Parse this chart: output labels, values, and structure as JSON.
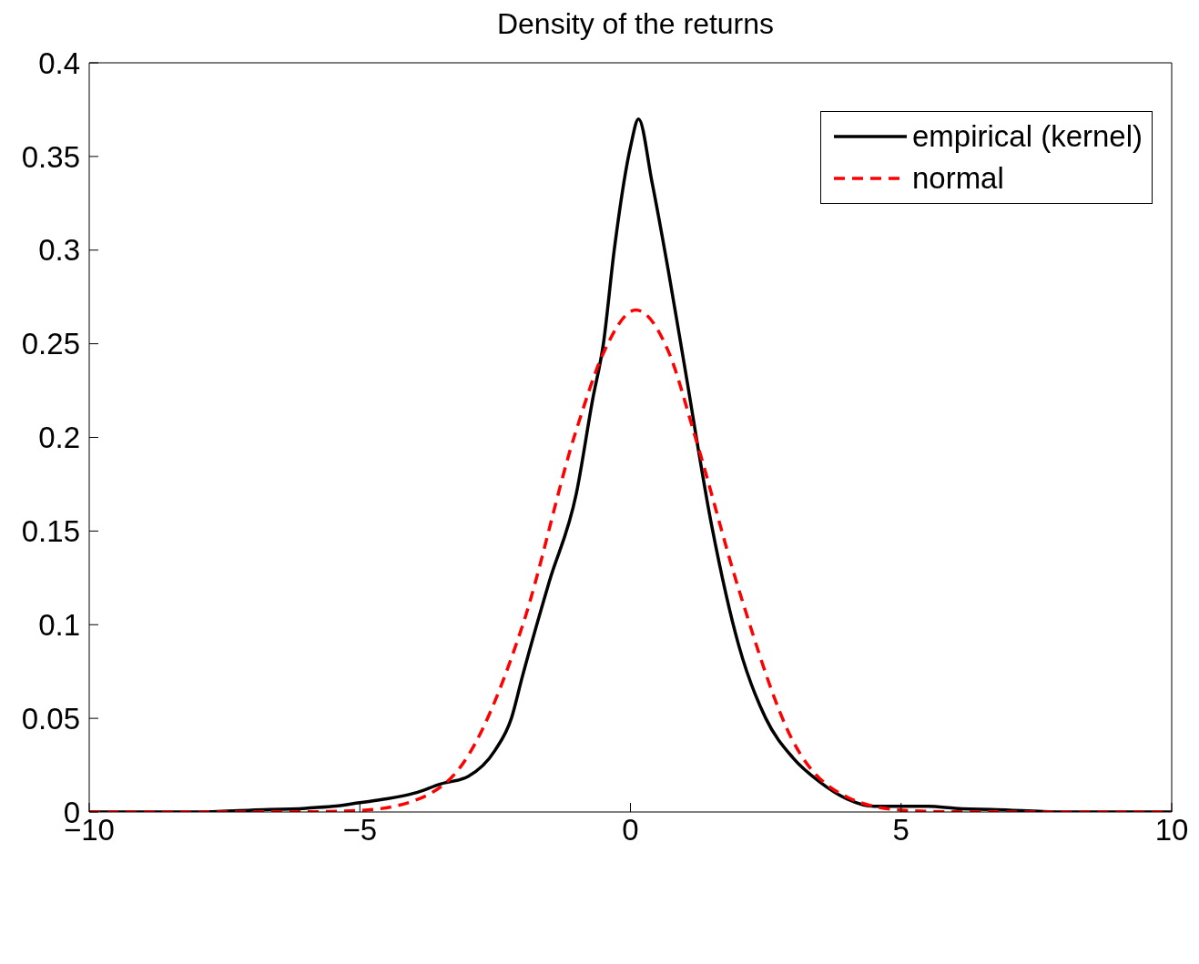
{
  "chart_data": {
    "type": "line",
    "title": "Density of the returns",
    "xlim": [
      -10,
      10
    ],
    "xticks": [
      {
        "value": -10,
        "label": "−10"
      },
      {
        "value": -5,
        "label": "−5"
      },
      0,
      5,
      10
    ],
    "ylim": [
      0,
      0.4
    ],
    "yticks": [
      0,
      0.05,
      0.1,
      0.15,
      0.2,
      0.25,
      0.3,
      0.35,
      0.4
    ],
    "grid": false,
    "legend": "top right",
    "marker": "none",
    "series": [
      {
        "name": "empirical (kernel)",
        "color": "#000000",
        "line_style": "solid",
        "x": [
          -10,
          -8,
          -7,
          -6,
          -5.5,
          -5,
          -4.5,
          -4,
          -3.5,
          -3,
          -2.5,
          -2.2,
          -2,
          -1.5,
          -1,
          -0.7,
          -0.5,
          -0.3,
          0,
          0.15,
          0.4,
          0.7,
          1,
          1.5,
          2,
          2.5,
          3,
          3.5,
          4,
          4.5,
          5,
          5.5,
          6,
          7,
          8,
          10
        ],
        "values": [
          0,
          0,
          0.001,
          0.002,
          0.003,
          0.005,
          0.007,
          0.01,
          0.015,
          0.019,
          0.033,
          0.05,
          0.072,
          0.123,
          0.17,
          0.22,
          0.25,
          0.3,
          0.355,
          0.37,
          0.336,
          0.289,
          0.238,
          0.153,
          0.089,
          0.05,
          0.029,
          0.016,
          0.007,
          0.003,
          0.003,
          0.003,
          0.002,
          0.001,
          0,
          0
        ]
      },
      {
        "name": "normal",
        "color": "#ff0000",
        "line_style": "dashed",
        "x": [
          -10,
          -6,
          -5,
          -4,
          -3,
          -2,
          -1,
          -0.5,
          0.1,
          0.7,
          1.2,
          2,
          3,
          4,
          5,
          6,
          10
        ],
        "values": [
          0,
          0.0001,
          0.0008,
          0.006,
          0.03,
          0.099,
          0.204,
          0.245,
          0.268,
          0.246,
          0.2,
          0.119,
          0.038,
          0.008,
          0.001,
          0.0001,
          0
        ]
      }
    ]
  }
}
